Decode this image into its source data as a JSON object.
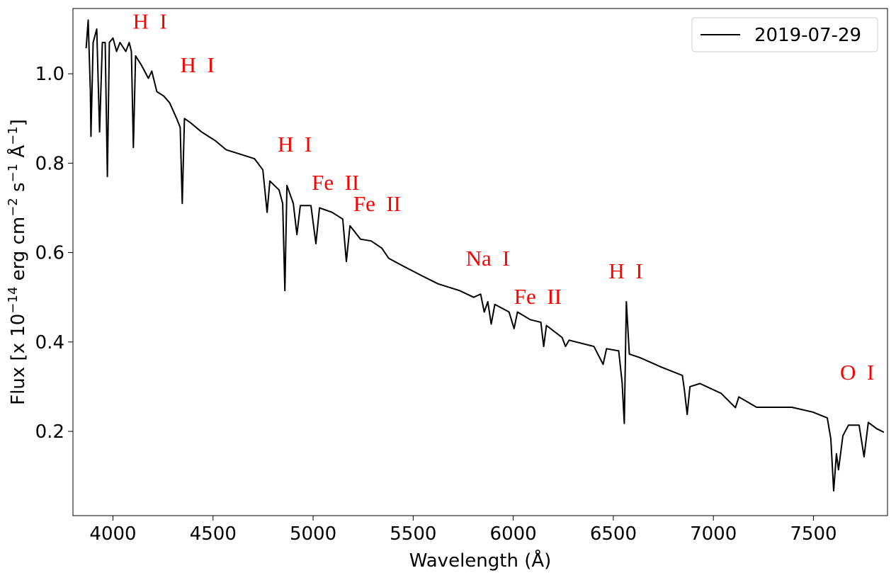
{
  "chart_data": {
    "type": "line",
    "xlabel": "Wavelength (Å)",
    "ylabel": [
      "Flux [x 10",
      "−14",
      " erg cm",
      "−2",
      " s",
      "−1",
      " Å",
      "−1",
      "]"
    ],
    "xlim": [
      3800,
      7870
    ],
    "ylim": [
      0.0115,
      1.146
    ],
    "xticks": [
      4000,
      4500,
      5000,
      5500,
      6000,
      6500,
      7000,
      7500
    ],
    "yticks": [
      0.2,
      0.4,
      0.6,
      0.8,
      {
        "value": 1,
        "label": "1.0"
      }
    ],
    "legend": "upper right",
    "series": [
      {
        "name": "2019-07-29",
        "color": "#000000",
        "x": [
          3866,
          3876,
          3887,
          3890,
          3901,
          3919,
          3933,
          3947,
          3961,
          3972,
          3982,
          4000,
          4018,
          4035,
          4064,
          4081,
          4092,
          4102,
          4113,
          4141,
          4177,
          4194,
          4219,
          4254,
          4283,
          4318,
          4336,
          4346,
          4357,
          4389,
          4442,
          4477,
          4512,
          4565,
          4636,
          4707,
          4749,
          4770,
          4784,
          4830,
          4848,
          4859,
          4869,
          4901,
          4919,
          4936,
          4989,
          5014,
          5032,
          5095,
          5148,
          5166,
          5184,
          5237,
          5290,
          5343,
          5378,
          5449,
          5548,
          5625,
          5731,
          5802,
          5837,
          5855,
          5873,
          5890,
          5908,
          5979,
          6004,
          6021,
          6085,
          6138,
          6152,
          6166,
          6244,
          6261,
          6279,
          6403,
          6449,
          6466,
          6527,
          6544,
          6555,
          6565,
          6580,
          6633,
          6739,
          6845,
          6855,
          6869,
          6883,
          6933,
          7039,
          7110,
          7127,
          7216,
          7392,
          7498,
          7569,
          7587,
          7601,
          7615,
          7625,
          7647,
          7675,
          7728,
          7753,
          7774,
          7816,
          7852
        ],
        "values": [
          1.057,
          1.12,
          0.96,
          0.86,
          1.07,
          1.1,
          0.87,
          1.07,
          1.07,
          0.77,
          1.07,
          1.08,
          1.05,
          1.07,
          1.05,
          1.07,
          1.05,
          0.835,
          1.04,
          1.02,
          0.99,
          1.006,
          0.96,
          0.95,
          0.935,
          0.9,
          0.88,
          0.71,
          0.9,
          0.89,
          0.87,
          0.86,
          0.85,
          0.83,
          0.82,
          0.81,
          0.785,
          0.69,
          0.76,
          0.74,
          0.71,
          0.515,
          0.75,
          0.71,
          0.64,
          0.705,
          0.705,
          0.62,
          0.7,
          0.69,
          0.675,
          0.58,
          0.66,
          0.63,
          0.626,
          0.61,
          0.587,
          0.57,
          0.547,
          0.53,
          0.515,
          0.5,
          0.507,
          0.467,
          0.49,
          0.44,
          0.484,
          0.467,
          0.43,
          0.467,
          0.45,
          0.444,
          0.39,
          0.437,
          0.41,
          0.39,
          0.404,
          0.39,
          0.35,
          0.385,
          0.38,
          0.31,
          0.218,
          0.49,
          0.373,
          0.365,
          0.344,
          0.325,
          0.293,
          0.238,
          0.3,
          0.307,
          0.285,
          0.253,
          0.277,
          0.254,
          0.254,
          0.243,
          0.23,
          0.183,
          0.067,
          0.15,
          0.114,
          0.19,
          0.214,
          0.214,
          0.143,
          0.22,
          0.206,
          0.198
        ]
      }
    ],
    "annotations": [
      {
        "text": "H  I",
        "x": 4099,
        "y": 1.101
      },
      {
        "text": "H  I",
        "x": 4336,
        "y": 1.003
      },
      {
        "text": "H  I",
        "x": 4823,
        "y": 0.826
      },
      {
        "text": "Fe  II",
        "x": 4993,
        "y": 0.74
      },
      {
        "text": "Fe  II",
        "x": 5201,
        "y": 0.693
      },
      {
        "text": "Na  I",
        "x": 5763,
        "y": 0.571
      },
      {
        "text": "Fe  II",
        "x": 6004,
        "y": 0.485
      },
      {
        "text": "H  I",
        "x": 6477,
        "y": 0.542
      },
      {
        "text": "O  I",
        "x": 7633,
        "y": 0.316
      }
    ]
  }
}
